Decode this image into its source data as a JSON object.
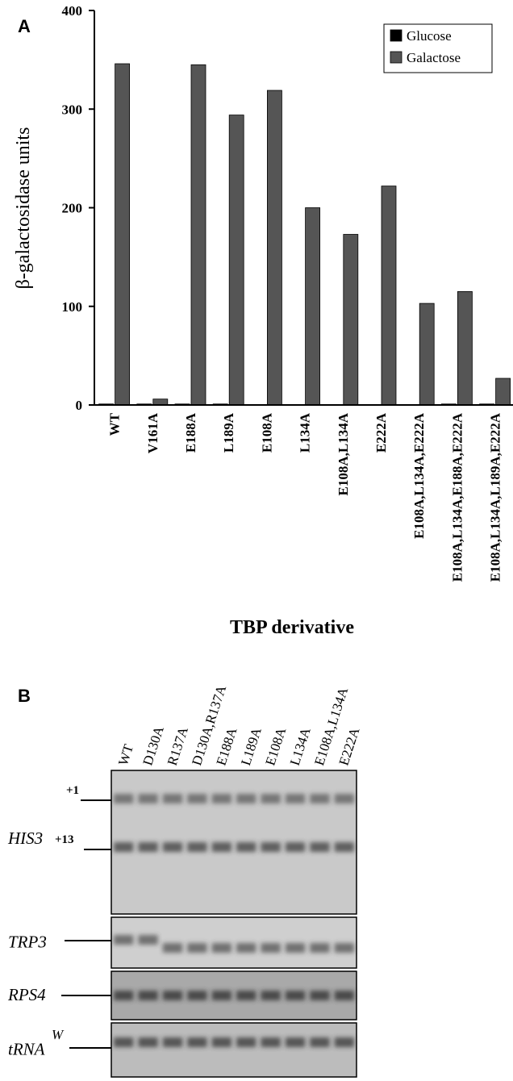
{
  "chart_data": {
    "type": "bar",
    "panel_label": "A",
    "x_label": "TBP derivative",
    "y_label": "β-galactosidase units",
    "categories": [
      "WT",
      "V161A",
      "E188A",
      "L189A",
      "E108A",
      "L134A",
      "E108A,L134A",
      "E222A",
      "E108A,L134A,E222A",
      "E108A,L134A,E188A,E222A",
      "E108A,L134A,L189A,E222A"
    ],
    "series": [
      {
        "name": "Glucose",
        "color": "#000000",
        "values": [
          1,
          1,
          1,
          1,
          0,
          0,
          0,
          0,
          0,
          1,
          1
        ]
      },
      {
        "name": "Galactose",
        "color": "#555555",
        "values": [
          346,
          6,
          345,
          294,
          319,
          200,
          173,
          222,
          103,
          115,
          27
        ]
      }
    ],
    "ylim": [
      0,
      400
    ],
    "yticks": [
      0,
      100,
      200,
      300,
      400
    ],
    "legend": "upper right"
  },
  "panel_b": {
    "panel_label": "B",
    "lanes": [
      "WT",
      "D130A",
      "R137A",
      "D130A,R137A",
      "E188A",
      "L189A",
      "E108A",
      "L134A",
      "E108A,L134A",
      "E222A"
    ],
    "blots": [
      {
        "label": "HIS3",
        "markers": [
          "+1",
          "+13"
        ]
      },
      {
        "label": "TRP3"
      },
      {
        "label": "RPS4"
      },
      {
        "label": "tRNA",
        "superscript": "W"
      }
    ]
  }
}
